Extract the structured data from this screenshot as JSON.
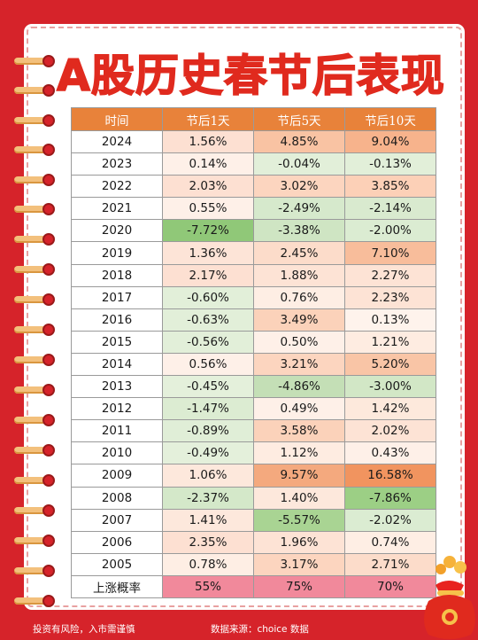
{
  "title": "A股历史春节后表现",
  "table": {
    "headers": [
      "时间",
      "节后1天",
      "节后5天",
      "节后10天"
    ],
    "rows": [
      {
        "year": "2024",
        "d1": "1.56%",
        "d5": "4.85%",
        "d10": "9.04%",
        "c1": "#fde0d2",
        "c5": "#f9c3a3",
        "c10": "#f7b38c"
      },
      {
        "year": "2023",
        "d1": "0.14%",
        "d5": "-0.04%",
        "d10": "-0.13%",
        "c1": "#fef0e8",
        "c5": "#e2efd9",
        "c10": "#e2efd9"
      },
      {
        "year": "2022",
        "d1": "2.03%",
        "d5": "3.02%",
        "d10": "3.85%",
        "c1": "#fde0d2",
        "c5": "#fcd5bf",
        "c10": "#fcd0b7"
      },
      {
        "year": "2021",
        "d1": "0.55%",
        "d5": "-2.49%",
        "d10": "-2.14%",
        "c1": "#fef0e8",
        "c5": "#d6e9cc",
        "c10": "#d9eacf"
      },
      {
        "year": "2020",
        "d1": "-7.72%",
        "d5": "-3.38%",
        "d10": "-2.00%",
        "c1": "#90c878",
        "c5": "#cfe5c3",
        "c10": "#dbecd2"
      },
      {
        "year": "2019",
        "d1": "1.36%",
        "d5": "2.45%",
        "d10": "7.10%",
        "c1": "#fde4d7",
        "c5": "#fcdcca",
        "c10": "#f8bd9b"
      },
      {
        "year": "2018",
        "d1": "2.17%",
        "d5": "1.88%",
        "d10": "2.27%",
        "c1": "#fde0d2",
        "c5": "#fde3d5",
        "c10": "#fde3d5"
      },
      {
        "year": "2017",
        "d1": "-0.60%",
        "d5": "0.76%",
        "d10": "2.23%",
        "c1": "#e2efd9",
        "c5": "#feeee4",
        "c10": "#fde3d5"
      },
      {
        "year": "2016",
        "d1": "-0.63%",
        "d5": "3.49%",
        "d10": "0.13%",
        "c1": "#e2efd9",
        "c5": "#fbd2ba",
        "c10": "#fef3ec"
      },
      {
        "year": "2015",
        "d1": "-0.56%",
        "d5": "0.50%",
        "d10": "1.21%",
        "c1": "#e2efd9",
        "c5": "#fef0e8",
        "c10": "#feece1"
      },
      {
        "year": "2014",
        "d1": "0.56%",
        "d5": "3.21%",
        "d10": "5.20%",
        "c1": "#fef0e8",
        "c5": "#fcd5bf",
        "c10": "#f9c5a6"
      },
      {
        "year": "2013",
        "d1": "-0.45%",
        "d5": "-4.86%",
        "d10": "-3.00%",
        "c1": "#e4f0db",
        "c5": "#c4dfb6",
        "c10": "#d2e7c6"
      },
      {
        "year": "2012",
        "d1": "-1.47%",
        "d5": "0.49%",
        "d10": "1.42%",
        "c1": "#dcecd2",
        "c5": "#fef0e8",
        "c10": "#fde9dc"
      },
      {
        "year": "2011",
        "d1": "-0.89%",
        "d5": "3.58%",
        "d10": "2.02%",
        "c1": "#e0eed7",
        "c5": "#fbd2ba",
        "c10": "#fde3d5"
      },
      {
        "year": "2010",
        "d1": "-0.49%",
        "d5": "1.12%",
        "d10": "0.43%",
        "c1": "#e4f0db",
        "c5": "#feece1",
        "c10": "#fef0e8"
      },
      {
        "year": "2009",
        "d1": "1.06%",
        "d5": "9.57%",
        "d10": "16.58%",
        "c1": "#fde8dc",
        "c5": "#f4a97e",
        "c10": "#f1945f"
      },
      {
        "year": "2008",
        "d1": "-2.37%",
        "d5": "1.40%",
        "d10": "-7.86%",
        "c1": "#d4e8c9",
        "c5": "#fde8dc",
        "c10": "#9ccf85"
      },
      {
        "year": "2007",
        "d1": "1.41%",
        "d5": "-5.57%",
        "d10": "-2.02%",
        "c1": "#fde8dc",
        "c5": "#a9d493",
        "c10": "#dbecd2"
      },
      {
        "year": "2006",
        "d1": "2.35%",
        "d5": "1.96%",
        "d10": "0.74%",
        "c1": "#fde0d2",
        "c5": "#fde3d5",
        "c10": "#feeee4"
      },
      {
        "year": "2005",
        "d1": "0.78%",
        "d5": "3.17%",
        "d10": "2.71%",
        "c1": "#feeee4",
        "c5": "#fcd5bf",
        "c10": "#fcdcca"
      }
    ],
    "summary": {
      "label": "上涨概率",
      "d1": "55%",
      "d5": "75%",
      "d10": "70%",
      "color": "#f1899b"
    }
  },
  "footer": {
    "left": "投资有风险，入市需谨慎",
    "right": "数据来源：choice 数据"
  },
  "colors": {
    "background": "#d6232a",
    "title": "#e02a1e",
    "header": "#e8823a"
  }
}
